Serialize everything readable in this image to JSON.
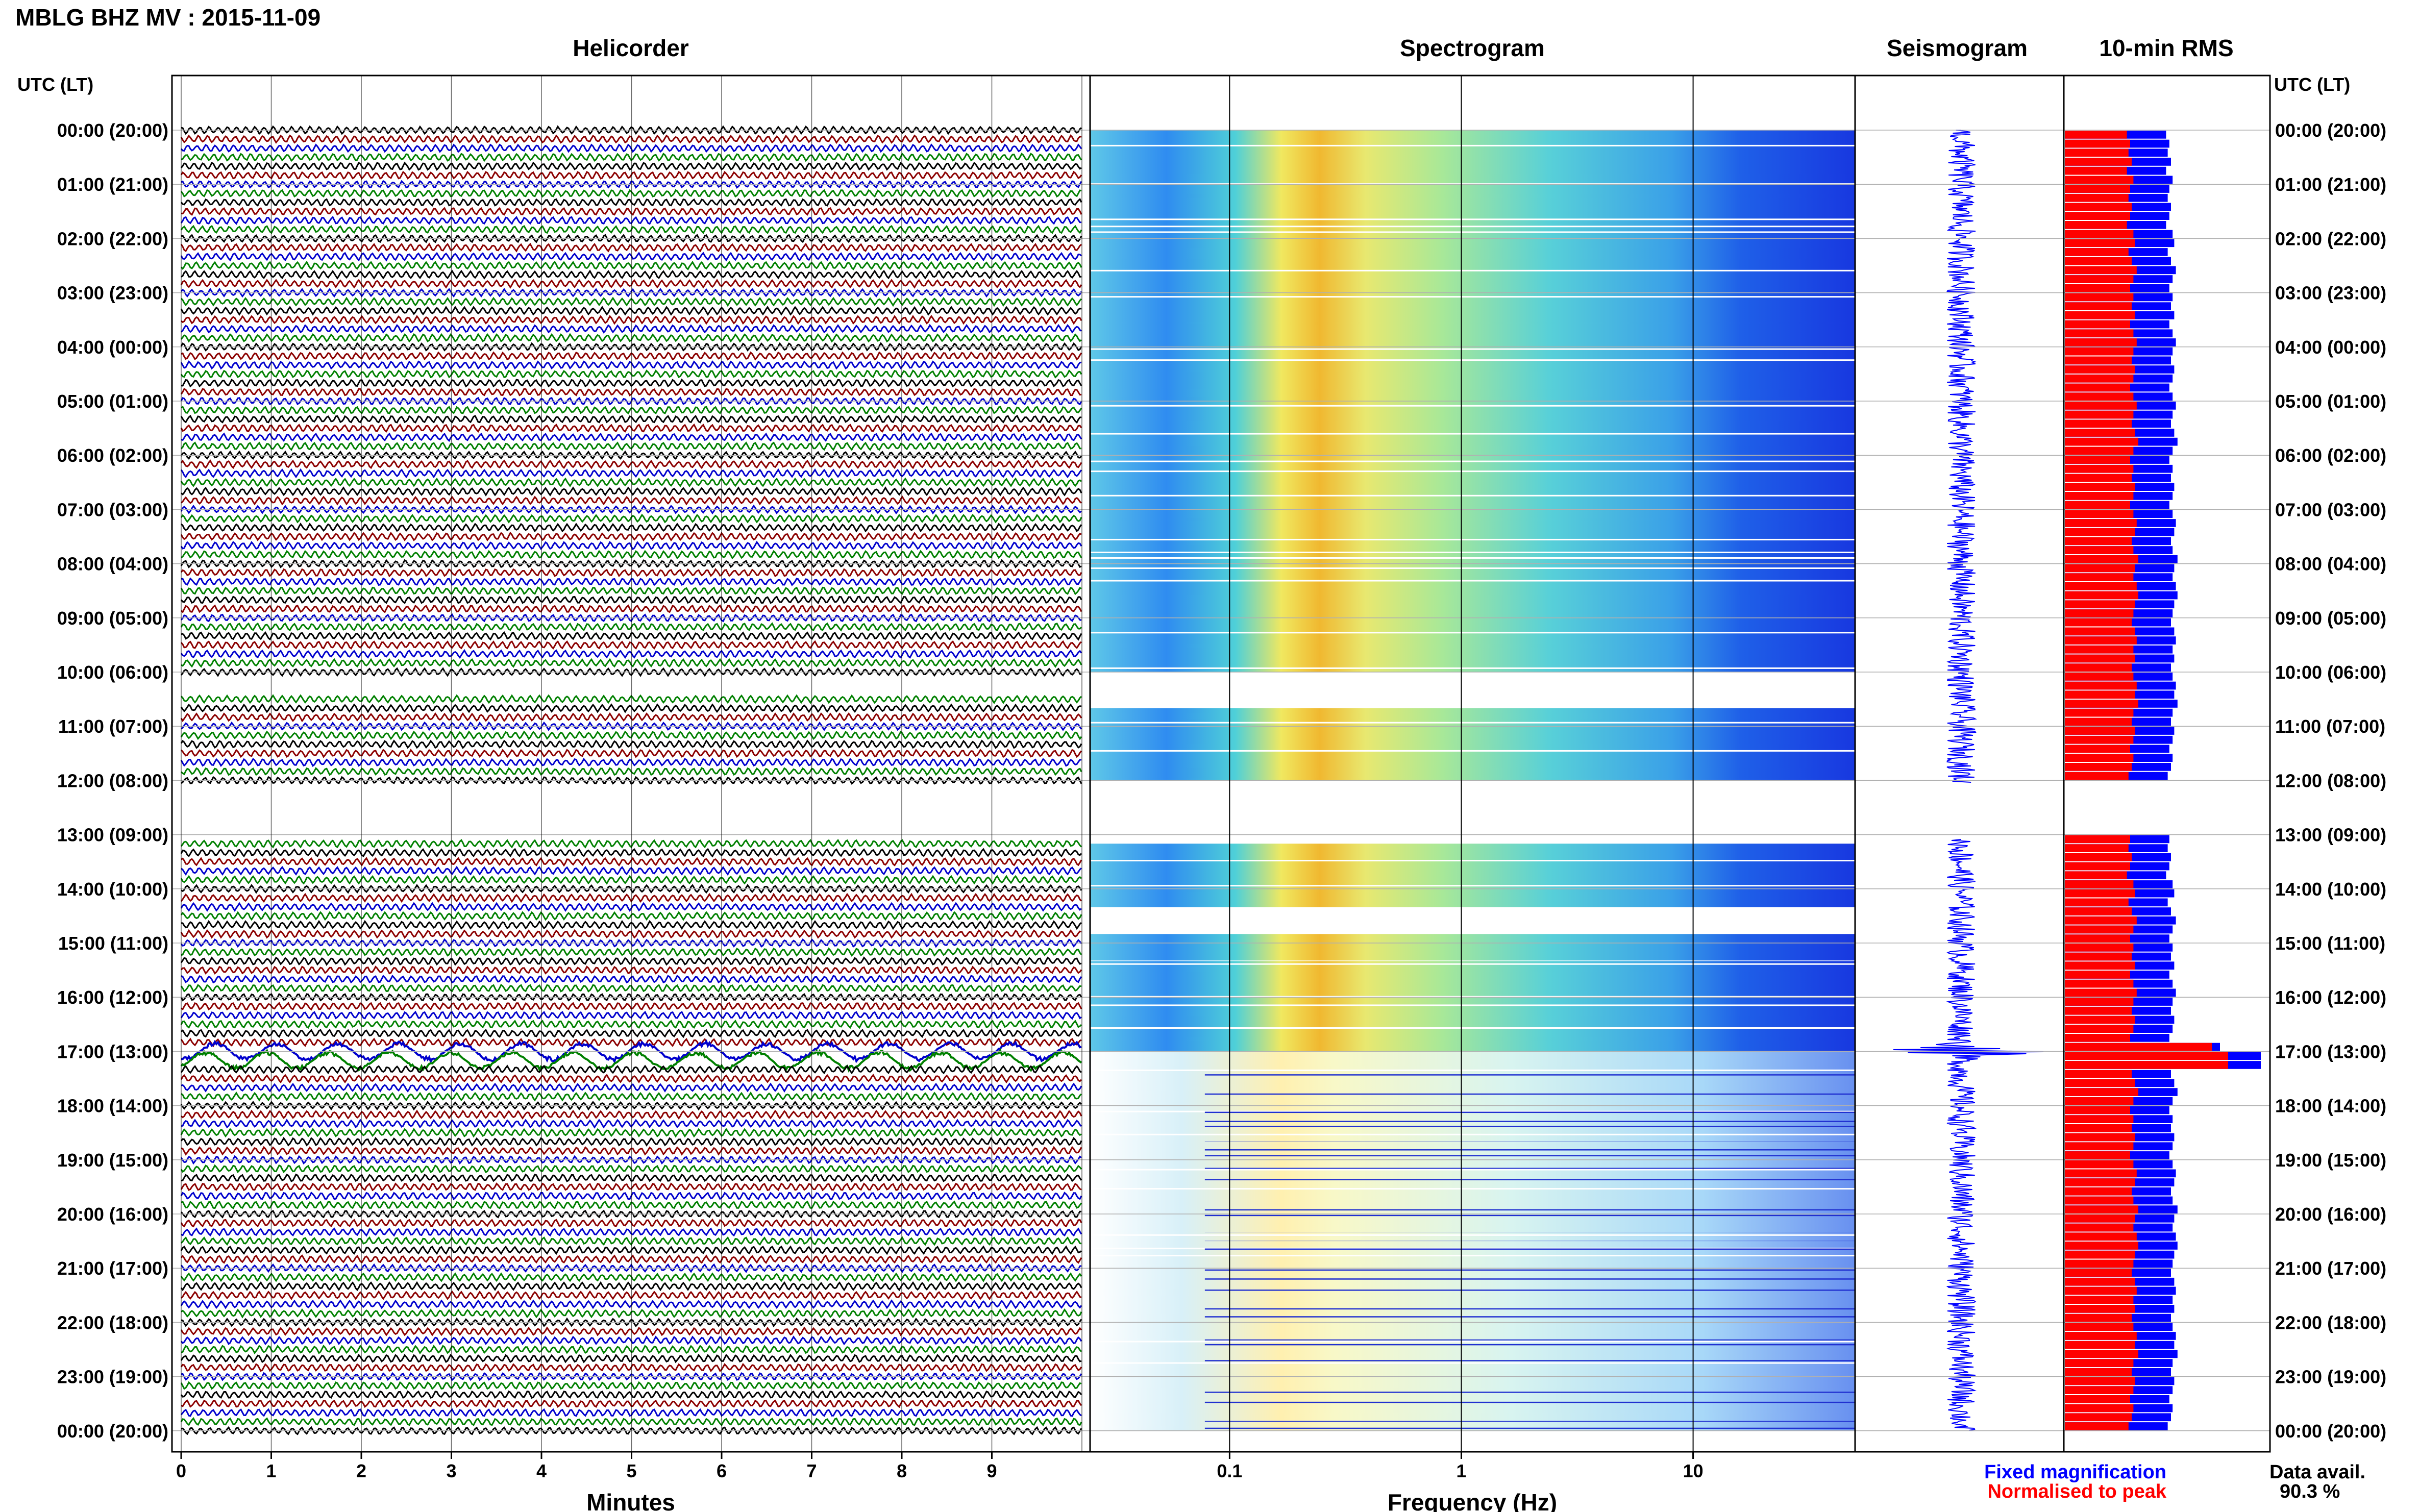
{
  "title": "MBLG BHZ MV : 2015-11-09",
  "panels": {
    "helicorder": "Helicorder",
    "spectrogram": "Spectrogram",
    "seismogram": "Seismogram",
    "rms": "10-min RMS"
  },
  "time_axis_label": "UTC (LT)",
  "time_labels": [
    "00:00 (20:00)",
    "01:00 (21:00)",
    "02:00 (22:00)",
    "03:00 (23:00)",
    "04:00 (00:00)",
    "05:00 (01:00)",
    "06:00 (02:00)",
    "07:00 (03:00)",
    "08:00 (04:00)",
    "09:00 (05:00)",
    "10:00 (06:00)",
    "11:00 (07:00)",
    "12:00 (08:00)",
    "13:00 (09:00)",
    "14:00 (10:00)",
    "15:00 (11:00)",
    "16:00 (12:00)",
    "17:00 (13:00)",
    "18:00 (14:00)",
    "19:00 (15:00)",
    "20:00 (16:00)",
    "21:00 (17:00)",
    "22:00 (18:00)",
    "23:00 (19:00)",
    "00:00 (20:00)"
  ],
  "minutes_axis": {
    "label": "Minutes",
    "ticks": [
      "0",
      "1",
      "2",
      "3",
      "4",
      "5",
      "6",
      "7",
      "8",
      "9"
    ]
  },
  "frequency_axis": {
    "label": "Frequency (Hz)",
    "ticks": [
      "0.1",
      "1",
      "10"
    ]
  },
  "legend": {
    "fixed": "Fixed magnification",
    "normalised": "Normalised to peak",
    "fixed_color": "#0000ff",
    "normalised_color": "#ff0000"
  },
  "data_availability": {
    "label": "Data avail.",
    "value": "90.3 %"
  },
  "colors": {
    "trace_cycle": [
      "#000000",
      "#8b0000",
      "#0000cd",
      "#008000"
    ],
    "rms_fixed": "#0000ff",
    "rms_normalised": "#ff0000",
    "spectrogram_gap": "#ffffff"
  },
  "chart_data": [
    {
      "type": "helicorder",
      "title": "Helicorder",
      "xlabel": "Minutes",
      "xlim": [
        0,
        10
      ],
      "lines_per_hour": 6,
      "hours": 24,
      "gaps_hours": [
        [
          10.15,
          10.45
        ],
        [
          12.1,
          13.0
        ]
      ],
      "event_hours": [
        17.0,
        17.25
      ]
    },
    {
      "type": "heatmap",
      "title": "Spectrogram",
      "xlabel": "Frequency (Hz)",
      "xscale": "log",
      "xlim": [
        0.025,
        50
      ],
      "peak_band_hz": [
        0.15,
        0.35
      ],
      "gaps_hours": [
        [
          10.0,
          10.6
        ],
        [
          12.0,
          13.1
        ],
        [
          14.3,
          14.8
        ]
      ]
    },
    {
      "type": "line",
      "title": "Seismogram",
      "gaps_hours": [
        [
          12.05,
          13.1
        ]
      ],
      "event_hours": [
        17.0
      ]
    },
    {
      "type": "bar",
      "title": "10-min RMS",
      "orientation": "horizontal",
      "bin_minutes": 10,
      "series": [
        {
          "name": "Fixed magnification",
          "values": [
            0.62,
            0.64,
            0.63,
            0.65,
            0.62,
            0.66,
            0.64,
            0.63,
            0.65,
            0.64,
            0.62,
            0.66,
            0.67,
            0.63,
            0.65,
            0.68,
            0.66,
            0.64,
            0.66,
            0.65,
            0.67,
            0.64,
            0.66,
            0.68,
            0.66,
            0.65,
            0.67,
            0.66,
            0.64,
            0.66,
            0.68,
            0.66,
            0.65,
            0.67,
            0.69,
            0.66,
            0.64,
            0.66,
            0.65,
            0.67,
            0.66,
            0.64,
            0.66,
            0.68,
            0.67,
            0.65,
            0.66,
            0.69,
            0.67,
            0.66,
            0.68,
            0.69,
            0.67,
            0.66,
            0.65,
            0.67,
            0.68,
            0.66,
            0.67,
            0.65,
            0.66,
            0.68,
            0.67,
            0.69,
            0.66,
            0.65,
            0.67,
            0.66,
            0.64,
            0.66,
            0.65,
            0.63
          ]
        },
        {
          "name": "Normalised to peak",
          "values": [
            0.38,
            0.4,
            0.39,
            0.41,
            0.38,
            0.42,
            0.4,
            0.39,
            0.41,
            0.4,
            0.38,
            0.42,
            0.43,
            0.39,
            0.41,
            0.44,
            0.42,
            0.4,
            0.42,
            0.41,
            0.43,
            0.4,
            0.42,
            0.44,
            0.42,
            0.41,
            0.43,
            0.42,
            0.4,
            0.42,
            0.44,
            0.42,
            0.41,
            0.43,
            0.45,
            0.42,
            0.4,
            0.42,
            0.41,
            0.43,
            0.42,
            0.4,
            0.42,
            0.44,
            0.43,
            0.41,
            0.42,
            0.45,
            0.43,
            0.42,
            0.44,
            0.45,
            0.43,
            0.42,
            0.41,
            0.43,
            0.44,
            0.42,
            0.43,
            0.41,
            0.42,
            0.44,
            0.43,
            0.45,
            0.42,
            0.41,
            0.43,
            0.42,
            0.4,
            0.42,
            0.41,
            0.39
          ]
        }
      ],
      "peak_hour": 17.0
    }
  ]
}
